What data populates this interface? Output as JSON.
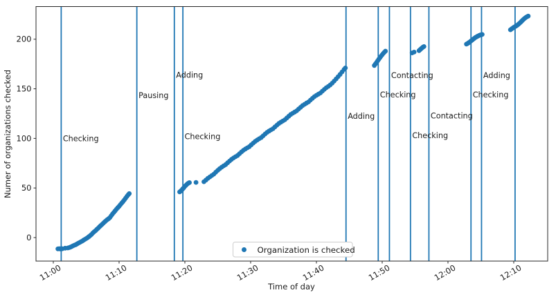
{
  "figure": {
    "background": "#ffffff",
    "accent_color": "#1f77b4",
    "spine_color": "#262626",
    "legend_border_color": "#cccccc"
  },
  "chart_data": {
    "type": "scatter",
    "title": "",
    "xlabel": "Time of day",
    "ylabel": "Numer of organizations checked",
    "x_unit": "minutes after 11:00",
    "x_range": [
      -2.63,
      75.16
    ],
    "y_range": [
      -23.7,
      232.9
    ],
    "grid": false,
    "legend": {
      "position": "lower center",
      "label": "Organization is checked",
      "marker_color": "#1f77b4"
    },
    "x_ticks": [
      {
        "t": 0,
        "label": "11:00"
      },
      {
        "t": 10,
        "label": "11:10"
      },
      {
        "t": 20,
        "label": "11:20"
      },
      {
        "t": 30,
        "label": "11:30"
      },
      {
        "t": 40,
        "label": "11:40"
      },
      {
        "t": 50,
        "label": "11:50"
      },
      {
        "t": 60,
        "label": "12:00"
      },
      {
        "t": 70,
        "label": "12:10"
      }
    ],
    "y_ticks": [
      0,
      50,
      100,
      150,
      200
    ],
    "events": [
      {
        "t": 1.2,
        "label": "Checking",
        "label_v": 100
      },
      {
        "t": 12.7,
        "label": "Pausing",
        "label_v": 143.5
      },
      {
        "t": 18.4,
        "label": "Adding",
        "label_v": 164
      },
      {
        "t": 19.7,
        "label": "Checking",
        "label_v": 102
      },
      {
        "t": 44.5,
        "label": "Adding",
        "label_v": 122.5
      },
      {
        "t": 49.4,
        "label": "Checking",
        "label_v": 144
      },
      {
        "t": 51.1,
        "label": "Contacting",
        "label_v": 163.5
      },
      {
        "t": 54.3,
        "label": "Checking",
        "label_v": 103
      },
      {
        "t": 57.1,
        "label": "Contacting",
        "label_v": 123
      },
      {
        "t": 63.5,
        "label": "Checking",
        "label_v": 144
      },
      {
        "t": 65.1,
        "label": "Adding",
        "label_v": 163.5
      },
      {
        "t": 70.2,
        "label": "",
        "label_v": null
      }
    ],
    "series": [
      {
        "name": "Organization is checked",
        "marker": "circle",
        "color": "#1f77b4",
        "points": [
          [
            0.7,
            -11.4
          ],
          [
            0.9,
            -11.2
          ],
          [
            1.05,
            -11.5
          ],
          [
            1.2,
            -11.1
          ],
          [
            1.35,
            -11.3
          ],
          [
            1.8,
            -10.7
          ],
          [
            2.2,
            -10.5
          ],
          [
            2.4,
            -10.1
          ],
          [
            2.6,
            -9.6
          ],
          [
            2.8,
            -9.0
          ],
          [
            3.0,
            -8.3
          ],
          [
            3.2,
            -7.7
          ],
          [
            3.4,
            -7.2
          ],
          [
            3.6,
            -6.4
          ],
          [
            3.8,
            -5.6
          ],
          [
            4.0,
            -5.0
          ],
          [
            4.2,
            -4.2
          ],
          [
            4.4,
            -3.5
          ],
          [
            4.6,
            -2.6
          ],
          [
            4.8,
            -1.8
          ],
          [
            5.0,
            -1.0
          ],
          [
            5.2,
            -0.1
          ],
          [
            5.4,
            0.9
          ],
          [
            5.6,
            2.0
          ],
          [
            5.8,
            3.1
          ],
          [
            6.0,
            4.6
          ],
          [
            6.2,
            5.8
          ],
          [
            6.4,
            6.9
          ],
          [
            6.6,
            8.2
          ],
          [
            6.8,
            9.4
          ],
          [
            7.0,
            10.8
          ],
          [
            7.2,
            12.0
          ],
          [
            7.4,
            13.2
          ],
          [
            7.6,
            14.5
          ],
          [
            7.8,
            15.8
          ],
          [
            8.0,
            17.0
          ],
          [
            8.2,
            18.1
          ],
          [
            8.4,
            19.0
          ],
          [
            8.6,
            20.2
          ],
          [
            8.8,
            22.0
          ],
          [
            9.0,
            23.8
          ],
          [
            9.2,
            25.4
          ],
          [
            9.4,
            27.0
          ],
          [
            9.6,
            28.6
          ],
          [
            9.8,
            30.1
          ],
          [
            10.0,
            31.5
          ],
          [
            10.2,
            33.2
          ],
          [
            10.4,
            34.8
          ],
          [
            10.6,
            36.3
          ],
          [
            10.8,
            38.0
          ],
          [
            11.0,
            39.8
          ],
          [
            11.2,
            41.6
          ],
          [
            11.4,
            43.3
          ],
          [
            11.55,
            44.3
          ],
          [
            19.2,
            46.0
          ],
          [
            19.35,
            46.8
          ],
          [
            19.5,
            47.7
          ],
          [
            19.65,
            48.9
          ],
          [
            19.8,
            50.0
          ],
          [
            19.95,
            51.2
          ],
          [
            20.1,
            52.3
          ],
          [
            20.25,
            53.3
          ],
          [
            20.4,
            54.2
          ],
          [
            20.55,
            55.0
          ],
          [
            20.7,
            55.4
          ],
          [
            21.7,
            55.6
          ],
          [
            22.9,
            56.3
          ],
          [
            23.2,
            58.0
          ],
          [
            23.5,
            59.7
          ],
          [
            23.8,
            61.2
          ],
          [
            24.1,
            62.6
          ],
          [
            24.4,
            64.0
          ],
          [
            24.7,
            65.9
          ],
          [
            25.0,
            67.8
          ],
          [
            25.3,
            69.5
          ],
          [
            25.6,
            71.0
          ],
          [
            25.9,
            72.3
          ],
          [
            26.2,
            73.6
          ],
          [
            26.5,
            75.4
          ],
          [
            26.8,
            77.2
          ],
          [
            27.1,
            78.9
          ],
          [
            27.4,
            80.3
          ],
          [
            27.7,
            81.5
          ],
          [
            28.0,
            82.7
          ],
          [
            28.3,
            84.5
          ],
          [
            28.6,
            86.3
          ],
          [
            28.9,
            88.0
          ],
          [
            29.2,
            89.3
          ],
          [
            29.5,
            90.5
          ],
          [
            29.8,
            91.7
          ],
          [
            30.1,
            93.5
          ],
          [
            30.4,
            95.3
          ],
          [
            30.7,
            97.0
          ],
          [
            31.0,
            98.4
          ],
          [
            31.3,
            99.6
          ],
          [
            31.6,
            100.8
          ],
          [
            31.9,
            102.6
          ],
          [
            32.2,
            104.4
          ],
          [
            32.5,
            106.1
          ],
          [
            32.8,
            107.4
          ],
          [
            33.1,
            108.6
          ],
          [
            33.4,
            109.8
          ],
          [
            33.7,
            111.6
          ],
          [
            34.0,
            113.4
          ],
          [
            34.3,
            115.1
          ],
          [
            34.6,
            116.4
          ],
          [
            34.9,
            117.6
          ],
          [
            35.2,
            118.8
          ],
          [
            35.5,
            120.6
          ],
          [
            35.8,
            122.4
          ],
          [
            36.1,
            124.1
          ],
          [
            36.4,
            125.4
          ],
          [
            36.7,
            126.6
          ],
          [
            37.0,
            127.8
          ],
          [
            37.3,
            129.6
          ],
          [
            37.6,
            131.4
          ],
          [
            37.9,
            133.1
          ],
          [
            38.2,
            134.4
          ],
          [
            38.5,
            135.6
          ],
          [
            38.8,
            136.8
          ],
          [
            39.1,
            138.6
          ],
          [
            39.4,
            140.4
          ],
          [
            39.7,
            142.1
          ],
          [
            40.0,
            143.4
          ],
          [
            40.3,
            144.6
          ],
          [
            40.6,
            145.8
          ],
          [
            40.9,
            147.6
          ],
          [
            41.2,
            149.4
          ],
          [
            41.5,
            151.1
          ],
          [
            41.8,
            152.4
          ],
          [
            42.1,
            153.9
          ],
          [
            42.4,
            155.7
          ],
          [
            42.7,
            157.8
          ],
          [
            43.0,
            160.0
          ],
          [
            43.3,
            162.2
          ],
          [
            43.6,
            164.5
          ],
          [
            43.9,
            167.0
          ],
          [
            44.2,
            169.5
          ],
          [
            44.4,
            171.0
          ],
          [
            48.8,
            173.5
          ],
          [
            48.97,
            175.0
          ],
          [
            49.14,
            176.6
          ],
          [
            49.31,
            178.2
          ],
          [
            49.48,
            179.8
          ],
          [
            49.65,
            181.3
          ],
          [
            49.82,
            182.8
          ],
          [
            49.99,
            184.2
          ],
          [
            50.16,
            185.6
          ],
          [
            50.33,
            186.9
          ],
          [
            50.5,
            188.0
          ],
          [
            54.55,
            186.2
          ],
          [
            54.85,
            187.0
          ],
          [
            55.6,
            188.5
          ],
          [
            55.75,
            189.4
          ],
          [
            55.9,
            190.3
          ],
          [
            56.05,
            191.2
          ],
          [
            56.2,
            192.0
          ],
          [
            56.35,
            192.6
          ],
          [
            62.8,
            195.0
          ],
          [
            62.95,
            195.6
          ],
          [
            63.1,
            196.2
          ],
          [
            63.25,
            196.9
          ],
          [
            63.4,
            197.7
          ],
          [
            63.55,
            198.5
          ],
          [
            63.7,
            199.3
          ],
          [
            63.85,
            200.1
          ],
          [
            64.0,
            200.9
          ],
          [
            64.15,
            201.6
          ],
          [
            64.3,
            202.2
          ],
          [
            64.45,
            202.8
          ],
          [
            64.6,
            203.3
          ],
          [
            64.75,
            203.8
          ],
          [
            64.9,
            204.2
          ],
          [
            65.05,
            204.5
          ],
          [
            65.2,
            204.8
          ],
          [
            69.5,
            209.5
          ],
          [
            69.65,
            210.3
          ],
          [
            69.8,
            211.0
          ],
          [
            69.95,
            211.7
          ],
          [
            70.1,
            212.3
          ],
          [
            70.25,
            212.9
          ],
          [
            70.4,
            213.5
          ],
          [
            70.55,
            214.2
          ],
          [
            70.7,
            215.0
          ],
          [
            70.85,
            215.9
          ],
          [
            71.0,
            216.8
          ],
          [
            71.15,
            217.8
          ],
          [
            71.3,
            218.8
          ],
          [
            71.45,
            219.8
          ],
          [
            71.6,
            220.7
          ],
          [
            71.75,
            221.5
          ],
          [
            71.9,
            222.2
          ],
          [
            72.05,
            222.8
          ],
          [
            72.2,
            223.3
          ]
        ]
      }
    ]
  }
}
